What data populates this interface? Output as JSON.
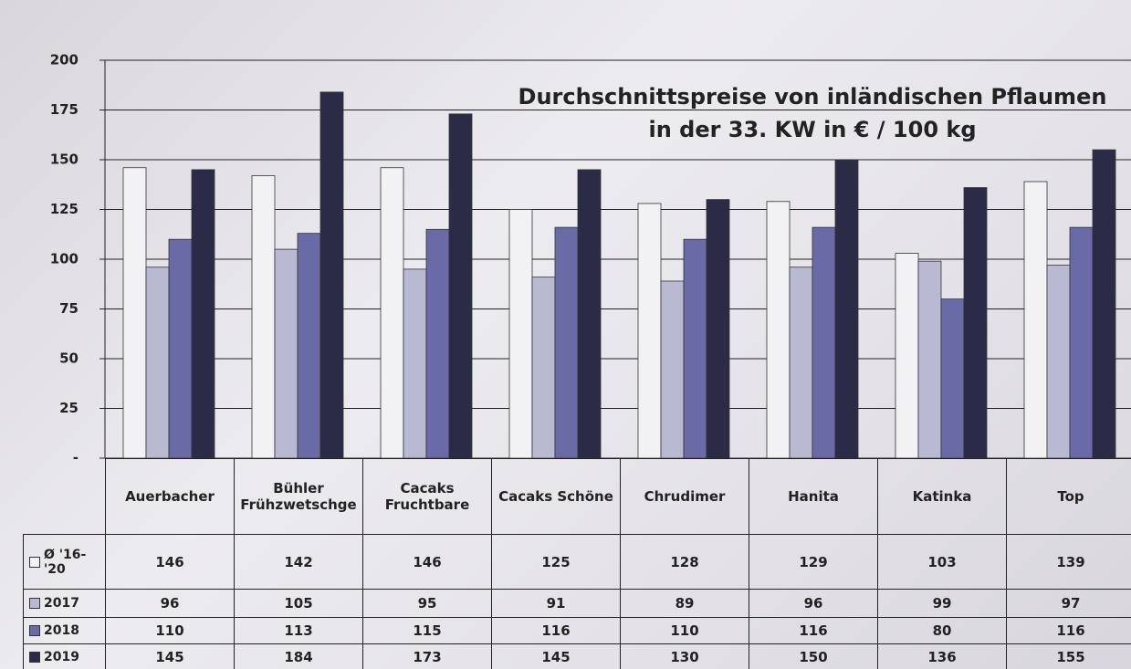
{
  "chart_data": {
    "type": "bar",
    "title": "Durchschnittspreise von inländischen Pflaumen\nin der 33. KW in € / 100 kg",
    "categories": [
      "Auerbacher",
      "Bühler Frühzwetschge",
      "Cacaks Fruchtbare",
      "Cacaks Schöne",
      "Chrudimer",
      "Hanita",
      "Katinka",
      "Top"
    ],
    "series": [
      {
        "name": "Ø '16-'20",
        "color": "#f2f2f4",
        "values": [
          146,
          142,
          146,
          125,
          128,
          129,
          103,
          139
        ]
      },
      {
        "name": "2017",
        "color": "#b9b9d2",
        "values": [
          96,
          105,
          95,
          91,
          89,
          96,
          99,
          97
        ]
      },
      {
        "name": "2018",
        "color": "#6a6aa6",
        "values": [
          110,
          113,
          115,
          116,
          110,
          116,
          80,
          116
        ]
      },
      {
        "name": "2019",
        "color": "#2b2b47",
        "values": [
          145,
          184,
          173,
          145,
          130,
          150,
          136,
          155
        ]
      }
    ],
    "ylim": [
      0,
      200
    ],
    "yticks": [
      {
        "value": 0,
        "label": "-"
      },
      25,
      50,
      75,
      100,
      125,
      150,
      175,
      200
    ],
    "grid": true
  }
}
